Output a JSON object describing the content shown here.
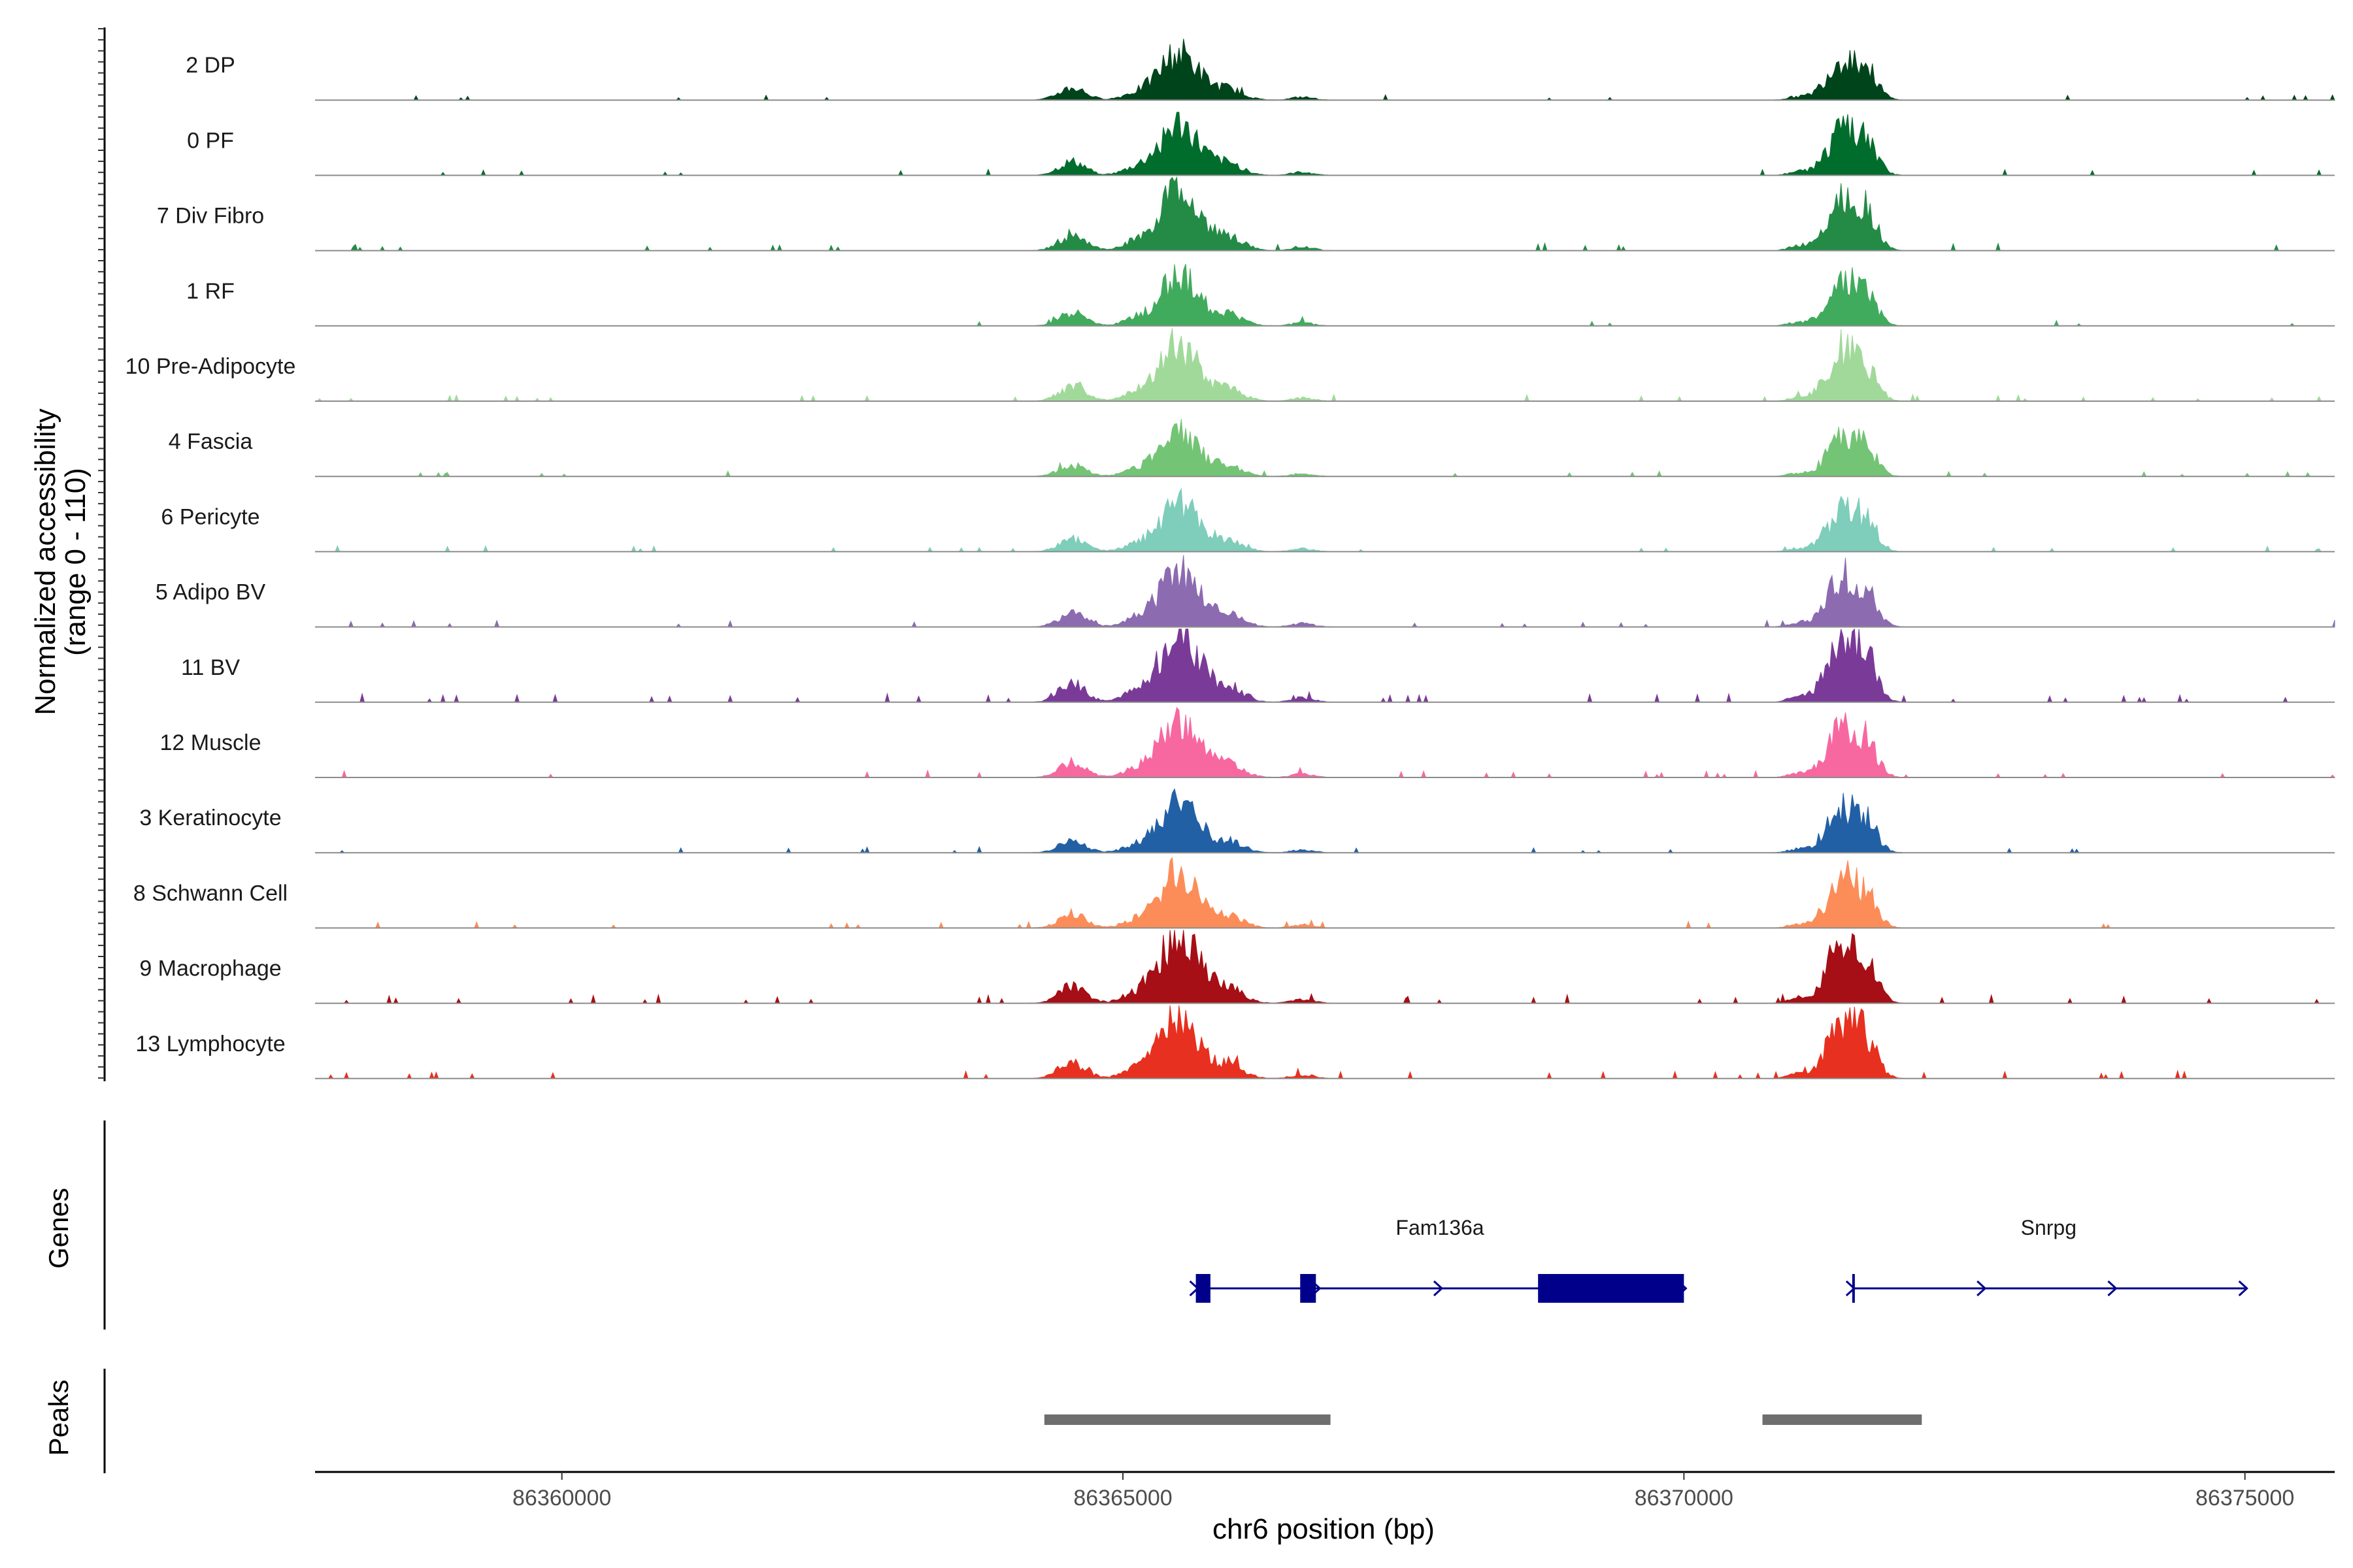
{
  "chart_data": {
    "type": "area",
    "subtype": "genome-coverage-track",
    "chromosome": "chr6",
    "xlim": [
      86357800,
      86375800
    ],
    "x_ticks": [
      86360000,
      86365000,
      86370000,
      86375000
    ],
    "x_tick_labels": [
      "86360000",
      "86365000",
      "86370000",
      "86375000"
    ],
    "xlabel": "chr6 position (bp)",
    "ylabel_line1": "Normalized accessibility",
    "ylabel_line2": "(range 0 - 110)",
    "ylim": [
      0,
      110
    ],
    "panel_titles": {
      "genes": "Genes",
      "peaks": "Peaks"
    },
    "tracks": [
      {
        "name": "2 DP",
        "color": "#00441b",
        "scale": 0.68,
        "noise": 0.25
      },
      {
        "name": "0 PF",
        "color": "#006d2c",
        "scale": 0.72,
        "noise": 0.45
      },
      {
        "name": "7 Div Fibro",
        "color": "#238b45",
        "scale": 0.88,
        "noise": 0.7
      },
      {
        "name": "1 RF",
        "color": "#41ab5d",
        "scale": 0.7,
        "noise": 0.35
      },
      {
        "name": "10 Pre-Adipocyte",
        "color": "#a1d99b",
        "scale": 0.78,
        "noise": 0.6
      },
      {
        "name": "4 Fascia",
        "color": "#74c476",
        "scale": 0.62,
        "noise": 0.45
      },
      {
        "name": "6 Pericyte",
        "color": "#7fcdbb",
        "scale": 0.68,
        "noise": 0.45
      },
      {
        "name": "5 Adipo BV",
        "color": "#8c6bb1",
        "scale": 0.8,
        "noise": 0.6
      },
      {
        "name": "11 BV",
        "color": "#7a3b98",
        "scale": 1.0,
        "noise": 1.0
      },
      {
        "name": "12 Muscle",
        "color": "#f768a1",
        "scale": 0.8,
        "noise": 0.9
      },
      {
        "name": "3 Keratinocyte",
        "color": "#2260a6",
        "scale": 0.7,
        "noise": 0.5
      },
      {
        "name": "8 Schwann Cell",
        "color": "#fc8d59",
        "scale": 0.78,
        "noise": 0.5
      },
      {
        "name": "9 Macrophage",
        "color": "#a50f15",
        "scale": 1.0,
        "noise": 1.0
      },
      {
        "name": "13 Lymphocyte",
        "color": "#e7301f",
        "scale": 0.9,
        "noise": 1.0
      }
    ],
    "peak_profile": [
      {
        "center": 86364550,
        "width": 120,
        "height": 0.25
      },
      {
        "center": 86365100,
        "width": 120,
        "height": 0.1
      },
      {
        "center": 86365500,
        "width": 180,
        "height": 0.95
      },
      {
        "center": 86365950,
        "width": 130,
        "height": 0.2
      },
      {
        "center": 86366600,
        "width": 100,
        "height": 0.06
      },
      {
        "center": 86371430,
        "width": 150,
        "height": 0.85
      },
      {
        "center": 86371650,
        "width": 90,
        "height": 0.35
      },
      {
        "center": 86371000,
        "width": 80,
        "height": 0.06
      }
    ],
    "genes": [
      {
        "name": "Fam136a",
        "start": 86365650,
        "end": 86370000,
        "strand": "+",
        "exons": [
          [
            86365650,
            86365780
          ],
          [
            86366580,
            86366720
          ],
          [
            86368700,
            86370000
          ]
        ]
      },
      {
        "name": "Snrpg",
        "start": 86371500,
        "end": 86375000,
        "strand": "+",
        "exons": [
          [
            86371500,
            86371520
          ]
        ]
      }
    ],
    "peaks": [
      [
        86364300,
        86366850
      ],
      [
        86370700,
        86372120
      ]
    ],
    "colors": {
      "gene": "#00008b",
      "peak": "#6e6e6e",
      "baseline": "#8c8c8c",
      "axis": "#000000"
    }
  }
}
